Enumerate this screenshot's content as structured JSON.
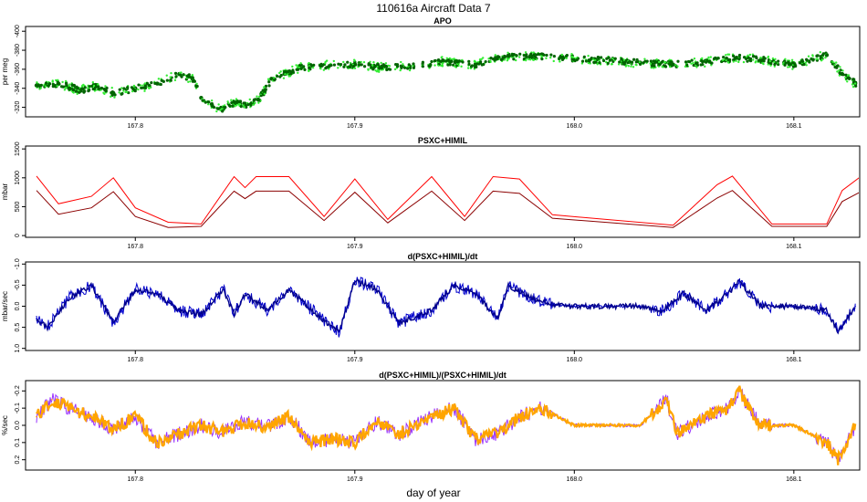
{
  "figure": {
    "title": "110616a   Aircraft Data 7",
    "xlabel": "day of year"
  },
  "chart_data": [
    {
      "type": "scatter",
      "title": "APO",
      "ylabel": "per meg",
      "xlim": [
        167.75,
        168.13
      ],
      "ylim": [
        -405,
        -310
      ],
      "ylim_display": "reversed",
      "yticks": [
        -320,
        -340,
        -360,
        -380,
        -400
      ],
      "xticks": [
        167.8,
        167.9,
        168.0,
        168.1
      ],
      "xtick_labels": [
        "167.8",
        "167.9",
        "168.0",
        "168.1"
      ],
      "series": [
        {
          "name": "APO",
          "color": "#006400",
          "halo_color": "#33ee33",
          "x": [
            167.755,
            167.765,
            167.775,
            167.782,
            167.79,
            167.8,
            167.81,
            167.82,
            167.826,
            167.83,
            167.835,
            167.84,
            167.845,
            167.85,
            167.856,
            167.862,
            167.868,
            167.875,
            167.885,
            167.9,
            167.912,
            167.925,
            167.94,
            167.955,
            167.965,
            167.98,
            167.995,
            168.01,
            168.03,
            168.045,
            168.06,
            168.075,
            168.085,
            168.1,
            168.115,
            168.122,
            168.128
          ],
          "y": [
            -343,
            -345,
            -338,
            -342,
            -335,
            -340,
            -345,
            -355,
            -350,
            -330,
            -322,
            -318,
            -325,
            -322,
            -328,
            -350,
            -355,
            -362,
            -364,
            -365,
            -362,
            -363,
            -368,
            -365,
            -372,
            -374,
            -372,
            -370,
            -367,
            -365,
            -368,
            -372,
            -370,
            -365,
            -375,
            -355,
            -345
          ]
        }
      ]
    },
    {
      "type": "line",
      "title": "PSXC+HIMIL",
      "ylabel": "mbar",
      "xlim": [
        167.75,
        168.13
      ],
      "ylim": [
        -30,
        1550
      ],
      "yticks": [
        0,
        500,
        1000,
        1500
      ],
      "xticks": [
        167.8,
        167.9,
        168.0,
        168.1
      ],
      "xtick_labels": [
        "167.8",
        "167.9",
        "168.0",
        "168.1"
      ],
      "series": [
        {
          "name": "PSXC+HIMIL",
          "color": "#ff0000",
          "x": [
            167.755,
            167.765,
            167.78,
            167.79,
            167.8,
            167.815,
            167.83,
            167.845,
            167.85,
            167.855,
            167.87,
            167.886,
            167.9,
            167.915,
            167.935,
            167.95,
            167.963,
            167.975,
            167.99,
            168.045,
            168.065,
            168.072,
            168.09,
            168.115,
            168.122,
            168.13
          ],
          "y": [
            1030,
            550,
            680,
            1000,
            480,
            230,
            200,
            1020,
            830,
            1020,
            1020,
            330,
            980,
            280,
            1020,
            330,
            1020,
            980,
            360,
            180,
            880,
            1030,
            200,
            200,
            780,
            1010
          ]
        },
        {
          "name": "PSXC+HIMIL (lower)",
          "color": "#8b0000",
          "x": [
            167.755,
            167.765,
            167.78,
            167.79,
            167.8,
            167.815,
            167.83,
            167.845,
            167.85,
            167.855,
            167.87,
            167.886,
            167.9,
            167.915,
            167.935,
            167.95,
            167.963,
            167.975,
            167.99,
            168.045,
            168.065,
            168.072,
            168.09,
            168.115,
            168.122,
            168.13
          ],
          "y": [
            780,
            370,
            480,
            760,
            330,
            140,
            160,
            770,
            640,
            770,
            770,
            260,
            750,
            220,
            770,
            260,
            770,
            730,
            300,
            140,
            650,
            780,
            160,
            160,
            590,
            750
          ]
        }
      ]
    },
    {
      "type": "line",
      "title": "d(PSXC+HIMIL)/dt",
      "ylabel": "mbar/sec",
      "xlim": [
        167.75,
        168.13
      ],
      "ylim": [
        -1.05,
        1.05
      ],
      "ylim_display": "reversed",
      "yticks": [
        -1.0,
        -0.5,
        0.0,
        0.5,
        1.0
      ],
      "ytick_labels": [
        "-1.0",
        "-0.5",
        "0.0",
        "0.5",
        "1.0"
      ],
      "xticks": [
        167.8,
        167.9,
        168.0,
        168.1
      ],
      "xtick_labels": [
        "167.8",
        "167.9",
        "168.0",
        "168.1"
      ],
      "series": [
        {
          "name": "d(PSXC+HIMIL)/dt",
          "color": "#0000cd",
          "x": [
            167.755,
            167.76,
            167.77,
            167.78,
            167.79,
            167.8,
            167.81,
            167.82,
            167.83,
            167.84,
            167.845,
            167.85,
            167.86,
            167.87,
            167.885,
            167.893,
            167.9,
            167.91,
            167.92,
            167.935,
            167.945,
            167.955,
            167.965,
            167.97,
            167.98,
            167.99,
            168.0,
            168.03,
            168.04,
            168.05,
            168.06,
            168.07,
            168.075,
            168.085,
            168.1,
            168.115,
            168.12,
            168.128
          ],
          "y": [
            0.3,
            0.5,
            -0.2,
            -0.5,
            0.4,
            -0.4,
            -0.3,
            0.1,
            0.2,
            -0.4,
            0.2,
            -0.3,
            0.1,
            -0.4,
            0.3,
            0.6,
            -0.6,
            -0.4,
            0.4,
            0.1,
            -0.5,
            -0.3,
            0.3,
            -0.5,
            -0.2,
            -0.05,
            0.0,
            0.0,
            0.1,
            -0.3,
            0.1,
            -0.3,
            -0.6,
            0.0,
            0.0,
            0.1,
            0.6,
            0.0
          ]
        }
      ]
    },
    {
      "type": "line",
      "title": "d(PSXC+HIMIL)/(PSXC+HIMIL)/dt",
      "ylabel": "%/sec",
      "xlim": [
        167.75,
        168.13
      ],
      "ylim": [
        -0.26,
        0.26
      ],
      "ylim_display": "reversed",
      "yticks": [
        -0.2,
        -0.1,
        0.0,
        0.1,
        0.2
      ],
      "ytick_labels": [
        "-0.2",
        "-0.1",
        "0.0",
        "0.1",
        "0.2"
      ],
      "xticks": [
        167.8,
        167.9,
        168.0,
        168.1
      ],
      "xtick_labels": [
        "167.8",
        "167.9",
        "168.0",
        "168.1"
      ],
      "series": [
        {
          "name": "d(PSXC+HIMIL)/(PSXC+HIMIL)/dt",
          "color": "#ffa500",
          "under_color": "#9933ff",
          "x": [
            167.755,
            167.762,
            167.77,
            167.78,
            167.79,
            167.8,
            167.81,
            167.82,
            167.83,
            167.84,
            167.85,
            167.86,
            167.87,
            167.88,
            167.89,
            167.9,
            167.91,
            167.92,
            167.935,
            167.945,
            167.955,
            167.965,
            167.975,
            167.985,
            168.0,
            168.03,
            168.042,
            168.047,
            168.06,
            168.07,
            168.075,
            168.085,
            168.1,
            168.115,
            168.12,
            168.128
          ],
          "y": [
            -0.05,
            -0.15,
            -0.1,
            -0.05,
            0.02,
            -0.05,
            0.1,
            0.05,
            0.0,
            0.04,
            -0.02,
            0.01,
            -0.05,
            0.1,
            0.08,
            0.1,
            -0.02,
            0.05,
            -0.05,
            -0.1,
            0.08,
            0.05,
            -0.05,
            -0.1,
            0.0,
            0.0,
            -0.15,
            0.05,
            -0.05,
            -0.1,
            -0.2,
            0.0,
            0.0,
            0.1,
            0.2,
            0.0
          ]
        }
      ]
    }
  ]
}
